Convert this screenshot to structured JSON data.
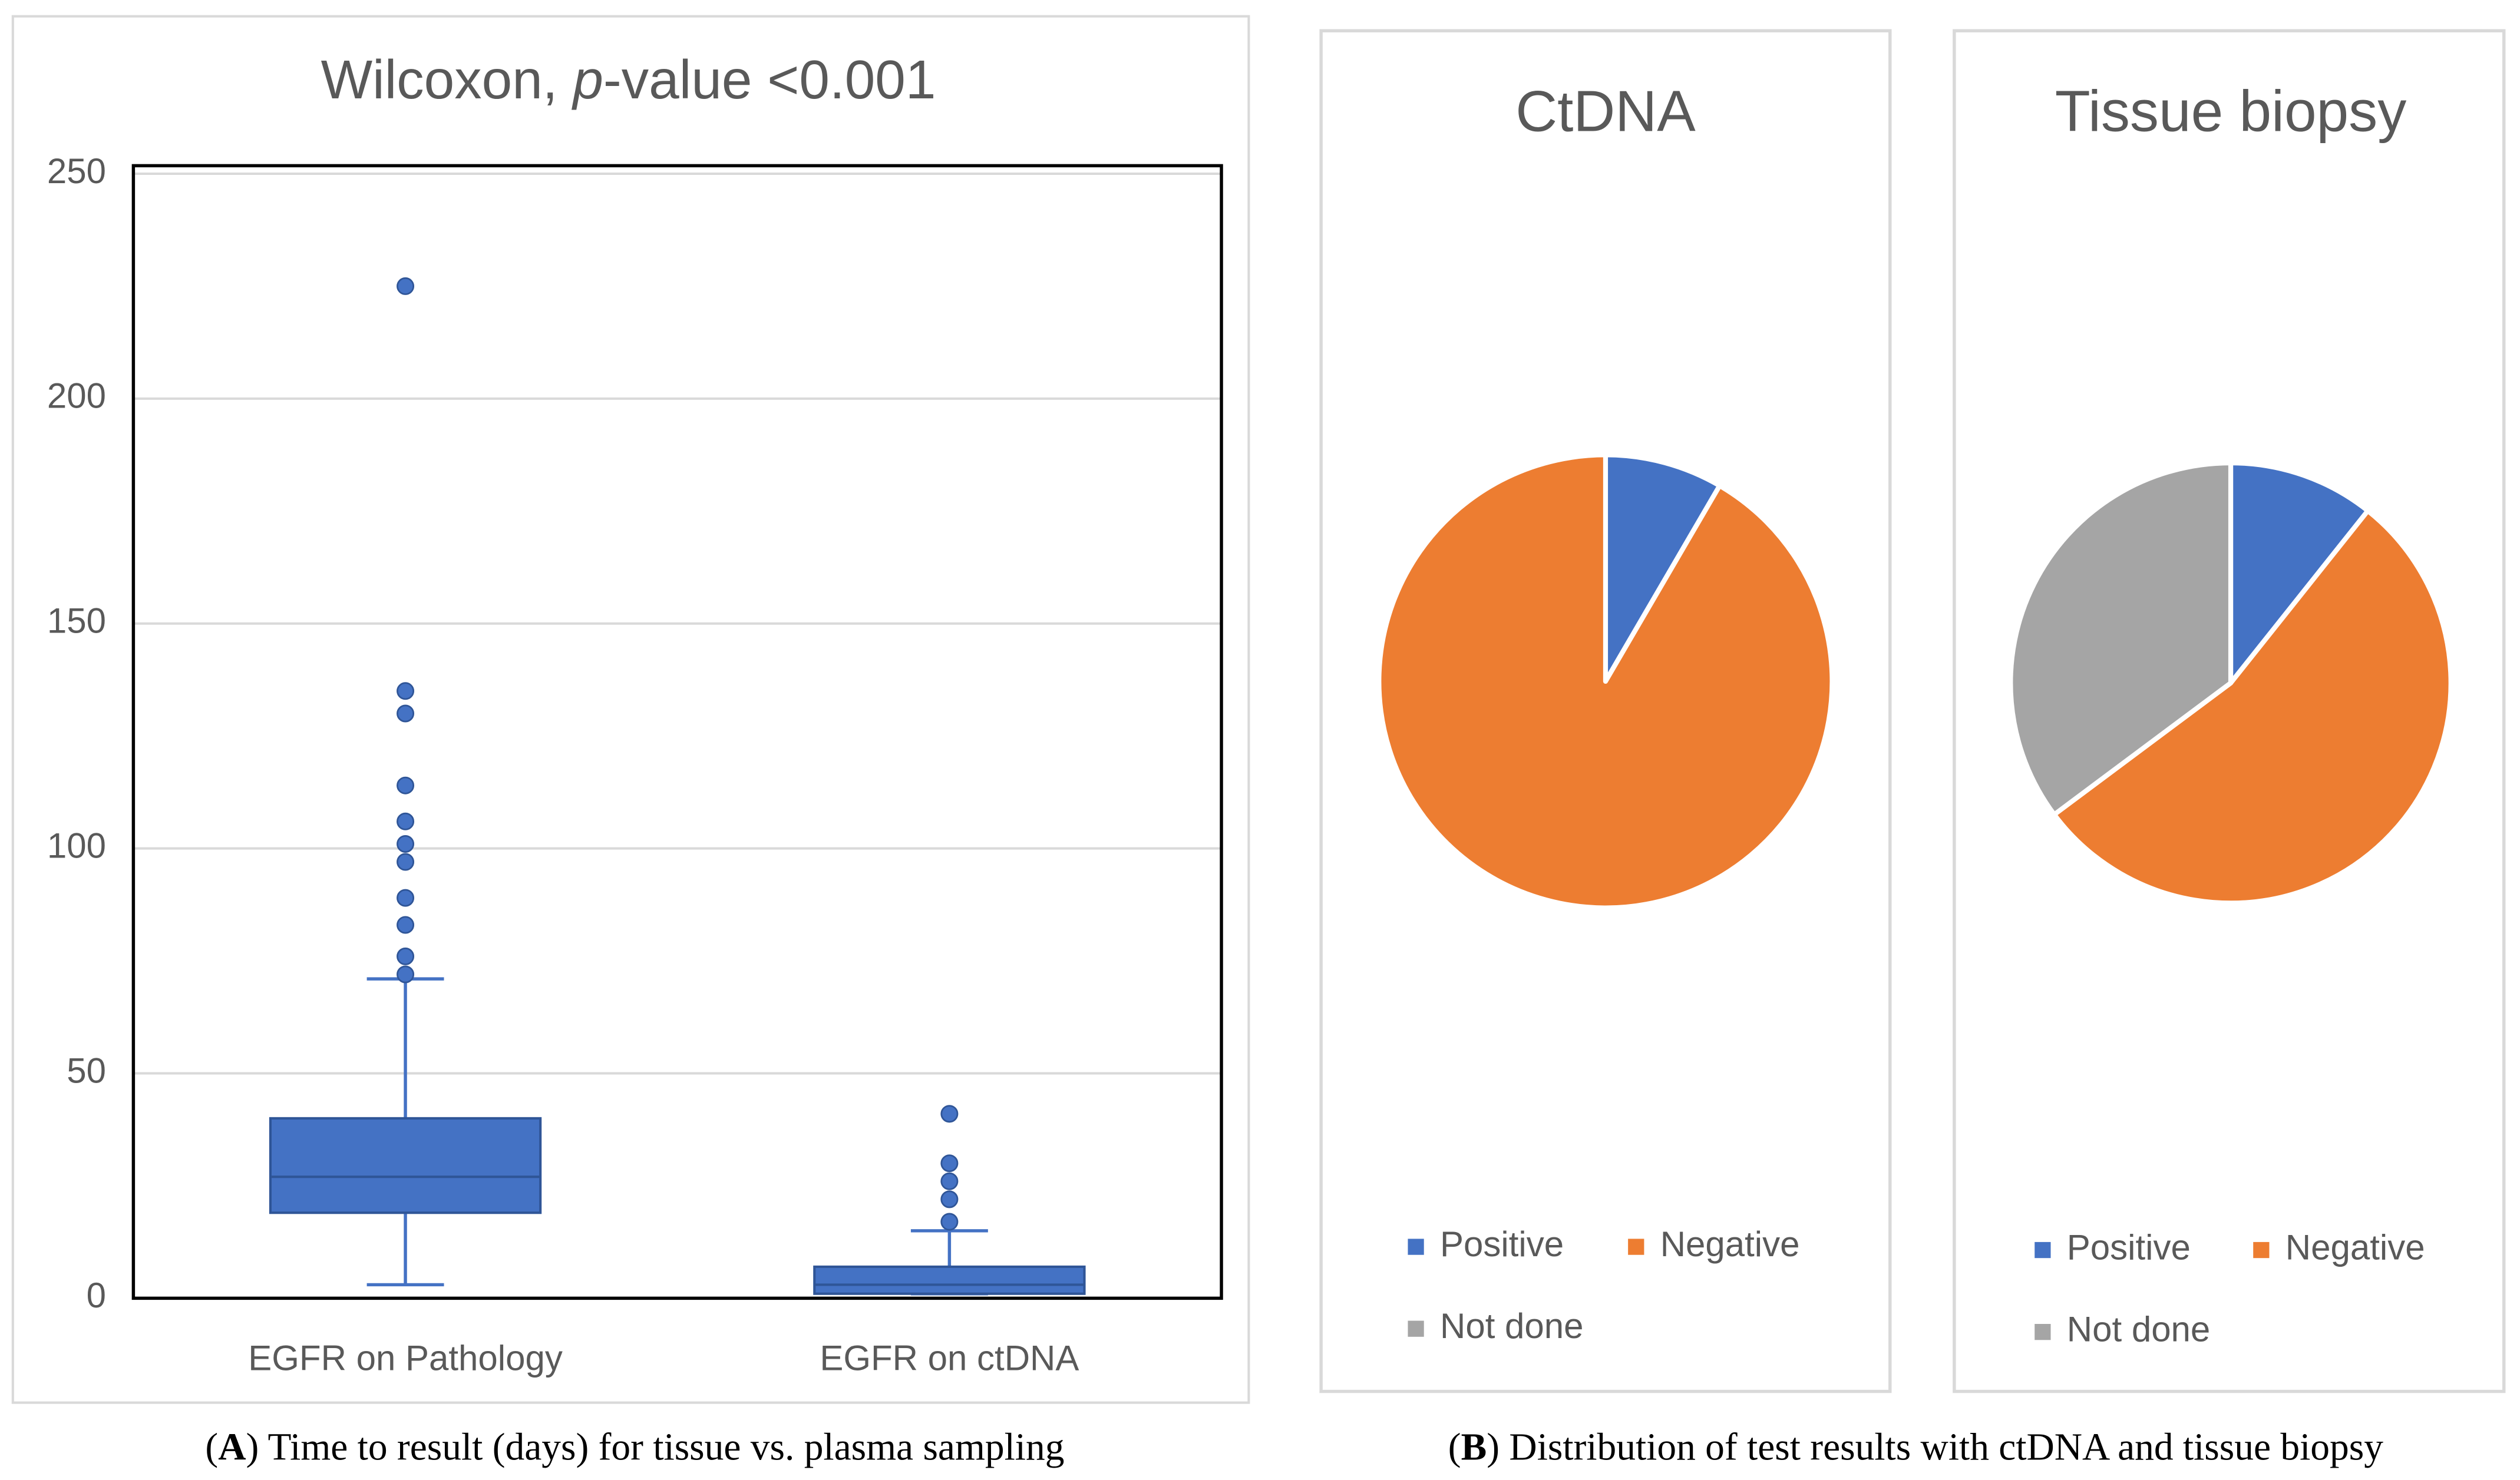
{
  "chart_data": [
    {
      "type": "box",
      "title": [
        "Wilcoxon, ",
        "p",
        "-value <0.001"
      ],
      "categories": [
        "EGFR on Pathology",
        "EGFR on ctDNA"
      ],
      "boxes": [
        {
          "whisker_low": 3,
          "q1": 19,
          "median": 27,
          "q3": 40,
          "whisker_high": 71,
          "outliers": [
            225,
            135,
            130,
            114,
            106,
            101,
            97,
            89,
            83,
            76,
            72
          ]
        },
        {
          "whisker_low": 1,
          "q1": 1,
          "median": 3,
          "q3": 7,
          "whisker_high": 15,
          "outliers": [
            41,
            30,
            26,
            22,
            17
          ]
        }
      ],
      "color": "#4472c4",
      "ylim": [
        0,
        250
      ],
      "yticks": [
        0,
        50,
        100,
        150,
        200,
        250
      ],
      "grid": true
    },
    {
      "type": "pie",
      "title": "CtDNA",
      "categories": [
        "Positive",
        "Negative",
        "Not done"
      ],
      "values": [
        8.4,
        91.6,
        0
      ],
      "colors": [
        "#4472c4",
        "#ed7d31",
        "#a5a5a5"
      ]
    },
    {
      "type": "pie",
      "title": "Tissue biopsy",
      "categories": [
        "Positive",
        "Negative",
        "Not done"
      ],
      "values": [
        10.7,
        54.1,
        35.2
      ],
      "colors": [
        "#4472c4",
        "#ed7d31",
        "#a5a5a5"
      ]
    }
  ],
  "captions": [
    {
      "parts": [
        "(",
        "A",
        ") Time to result (days) for tissue vs. plasma sampling"
      ]
    },
    {
      "parts": [
        "(",
        "B",
        ") Distribution of test results with ctDNA and tissue biopsy"
      ]
    }
  ]
}
